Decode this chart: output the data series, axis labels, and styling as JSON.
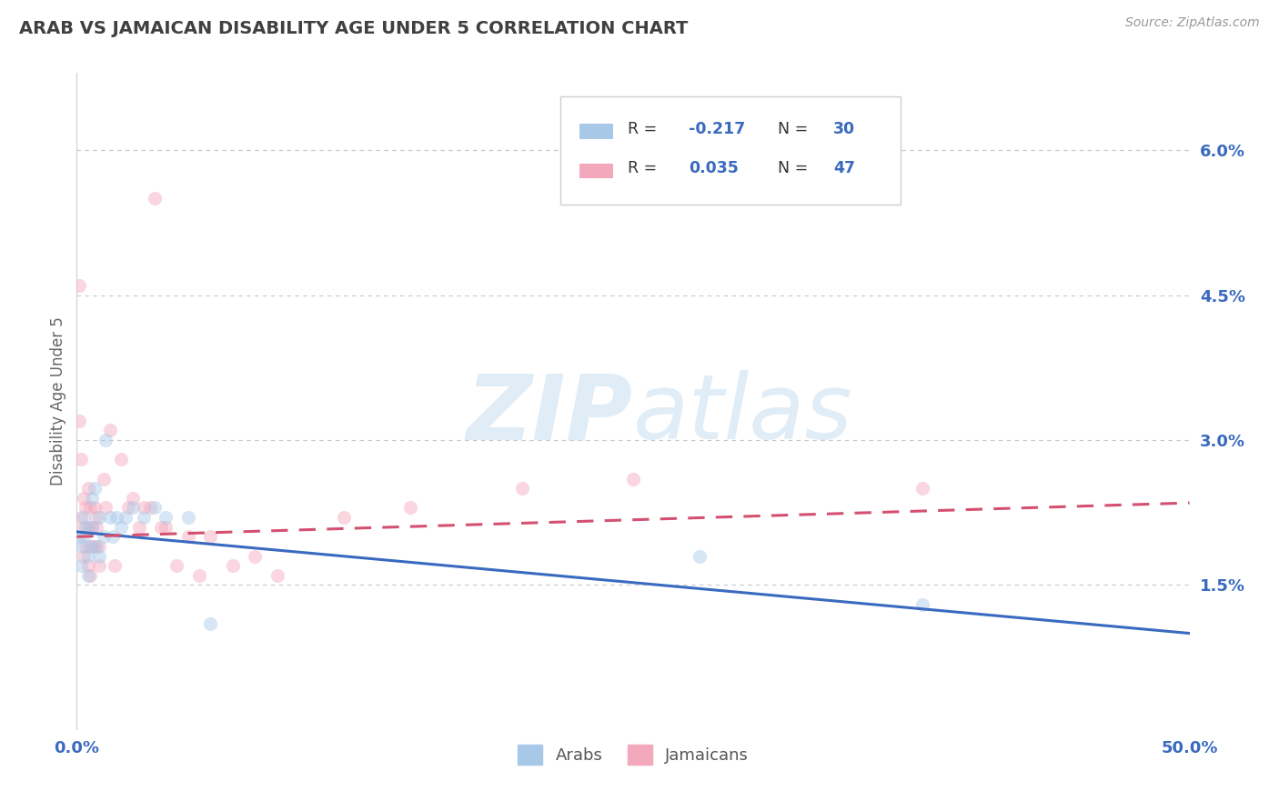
{
  "title": "ARAB VS JAMAICAN DISABILITY AGE UNDER 5 CORRELATION CHART",
  "source": "Source: ZipAtlas.com",
  "ylabel": "Disability Age Under 5",
  "ytick_labels": [
    "1.5%",
    "3.0%",
    "4.5%",
    "6.0%"
  ],
  "ytick_values": [
    0.015,
    0.03,
    0.045,
    0.06
  ],
  "xlim": [
    0.0,
    0.5
  ],
  "ylim": [
    0.0,
    0.068
  ],
  "arab_color": "#a8c8e8",
  "jamaican_color": "#f4a8bc",
  "arab_line_color": "#3a6abf",
  "jamaican_line_color": "#d45070",
  "background_color": "#ffffff",
  "grid_color": "#c8c8d0",
  "title_color": "#404040",
  "axis_label_color": "#3a6abf",
  "dot_size": 120,
  "dot_alpha": 0.45,
  "line_width": 2.2,
  "arab_points_x": [
    0.001,
    0.002,
    0.002,
    0.003,
    0.003,
    0.004,
    0.005,
    0.005,
    0.006,
    0.007,
    0.007,
    0.008,
    0.009,
    0.01,
    0.01,
    0.012,
    0.013,
    0.015,
    0.016,
    0.018,
    0.02,
    0.022,
    0.025,
    0.03,
    0.035,
    0.04,
    0.05,
    0.06,
    0.28,
    0.38
  ],
  "arab_points_y": [
    0.02,
    0.019,
    0.017,
    0.02,
    0.022,
    0.021,
    0.018,
    0.016,
    0.019,
    0.021,
    0.024,
    0.025,
    0.019,
    0.018,
    0.022,
    0.02,
    0.03,
    0.022,
    0.02,
    0.022,
    0.021,
    0.022,
    0.023,
    0.022,
    0.023,
    0.022,
    0.022,
    0.011,
    0.018,
    0.013
  ],
  "jamaican_points_x": [
    0.001,
    0.001,
    0.002,
    0.002,
    0.003,
    0.003,
    0.003,
    0.004,
    0.004,
    0.005,
    0.005,
    0.005,
    0.006,
    0.006,
    0.007,
    0.007,
    0.008,
    0.008,
    0.009,
    0.009,
    0.01,
    0.01,
    0.012,
    0.013,
    0.015,
    0.017,
    0.02,
    0.023,
    0.025,
    0.028,
    0.03,
    0.033,
    0.035,
    0.038,
    0.04,
    0.045,
    0.05,
    0.055,
    0.06,
    0.07,
    0.08,
    0.09,
    0.12,
    0.15,
    0.2,
    0.25,
    0.38
  ],
  "jamaican_points_y": [
    0.032,
    0.046,
    0.028,
    0.022,
    0.024,
    0.021,
    0.018,
    0.023,
    0.019,
    0.025,
    0.021,
    0.017,
    0.023,
    0.016,
    0.021,
    0.019,
    0.023,
    0.019,
    0.021,
    0.022,
    0.017,
    0.019,
    0.026,
    0.023,
    0.031,
    0.017,
    0.028,
    0.023,
    0.024,
    0.021,
    0.023,
    0.023,
    0.055,
    0.021,
    0.021,
    0.017,
    0.02,
    0.016,
    0.02,
    0.017,
    0.018,
    0.016,
    0.022,
    0.023,
    0.025,
    0.026,
    0.025
  ],
  "arab_trend_x0": 0.0,
  "arab_trend_y0": 0.0205,
  "arab_trend_x1": 0.5,
  "arab_trend_y1": 0.01,
  "jamaican_trend_x0": 0.0,
  "jamaican_trend_y0": 0.02,
  "jamaican_trend_x1": 0.5,
  "jamaican_trend_y1": 0.0235
}
